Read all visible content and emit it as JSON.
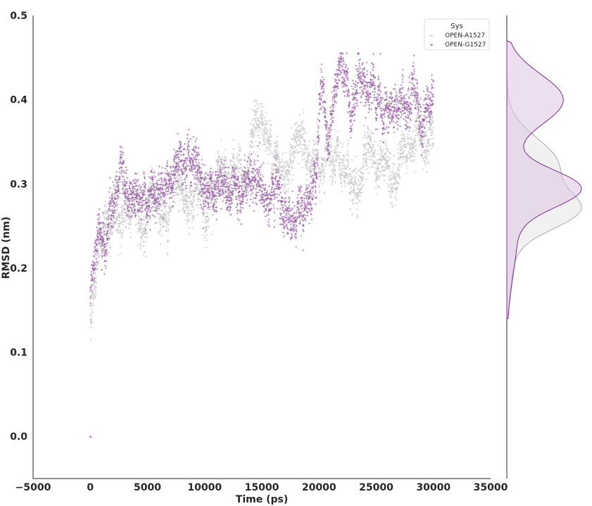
{
  "chart_data": {
    "type": "scatter",
    "xlabel": "Time (ps)",
    "ylabel": "RMSD (nm)",
    "xlim": [
      -5000,
      35000
    ],
    "ylim": [
      -0.05,
      0.5
    ],
    "xticks": [
      -5000,
      0,
      5000,
      10000,
      15000,
      20000,
      25000,
      30000,
      35000
    ],
    "xtick_labels": [
      "−5000",
      "0",
      "5000",
      "10000",
      "15000",
      "20000",
      "25000",
      "30000",
      "35000"
    ],
    "yticks": [
      0.0,
      0.1,
      0.2,
      0.3,
      0.4,
      0.5
    ],
    "ytick_labels": [
      "0.0",
      "0.1",
      "0.2",
      "0.3",
      "0.4",
      "0.5"
    ],
    "grid": false,
    "legend": {
      "title": "Sys",
      "placement": "top-right"
    },
    "series": [
      {
        "name": "OPEN-A1527",
        "color": "#b5b5b5",
        "marker": "+",
        "trend": {
          "x": [
            0,
            100,
            300,
            500,
            800,
            1200,
            1600,
            2000,
            2500,
            3000,
            4000,
            5000,
            6000,
            7000,
            8000,
            9000,
            10000,
            11000,
            12000,
            13000,
            14000,
            14800,
            15200,
            16000,
            17000,
            18000,
            19000,
            19500,
            20000,
            21000,
            22000,
            23000,
            24000,
            25000,
            26000,
            27000,
            28000,
            29000,
            30000
          ],
          "y": [
            0.13,
            0.155,
            0.19,
            0.21,
            0.225,
            0.24,
            0.25,
            0.255,
            0.262,
            0.268,
            0.272,
            0.27,
            0.268,
            0.27,
            0.275,
            0.285,
            0.295,
            0.3,
            0.305,
            0.31,
            0.315,
            0.345,
            0.37,
            0.335,
            0.33,
            0.345,
            0.335,
            0.32,
            0.305,
            0.31,
            0.31,
            0.312,
            0.318,
            0.322,
            0.33,
            0.335,
            0.34,
            0.35,
            0.35
          ]
        },
        "y_range": [
          0.0,
          0.42
        ],
        "distribution_peaks": [
          0.268,
          0.325
        ]
      },
      {
        "name": "OPEN-G1527",
        "color": "#7b2d8b",
        "marker": "+",
        "trend": {
          "x": [
            0,
            100,
            300,
            500,
            800,
            1200,
            1600,
            2000,
            2500,
            3000,
            4000,
            5000,
            6000,
            7000,
            8000,
            9000,
            10000,
            11000,
            12000,
            13000,
            14000,
            15000,
            16000,
            17000,
            18000,
            19000,
            19500,
            20200,
            21000,
            22000,
            23000,
            23500,
            24000,
            25000,
            26000,
            27000,
            28000,
            29000,
            30000
          ],
          "y": [
            0.165,
            0.18,
            0.2,
            0.215,
            0.23,
            0.245,
            0.26,
            0.27,
            0.3,
            0.285,
            0.29,
            0.295,
            0.3,
            0.305,
            0.31,
            0.295,
            0.3,
            0.31,
            0.305,
            0.305,
            0.3,
            0.29,
            0.285,
            0.27,
            0.275,
            0.29,
            0.295,
            0.395,
            0.36,
            0.41,
            0.42,
            0.425,
            0.415,
            0.39,
            0.385,
            0.38,
            0.385,
            0.39,
            0.405
          ]
        },
        "y_range": [
          0.0,
          0.455
        ],
        "distribution_peaks": [
          0.295,
          0.4
        ]
      }
    ],
    "marginal": {
      "type": "kde",
      "axis": "y",
      "fill": true
    }
  }
}
